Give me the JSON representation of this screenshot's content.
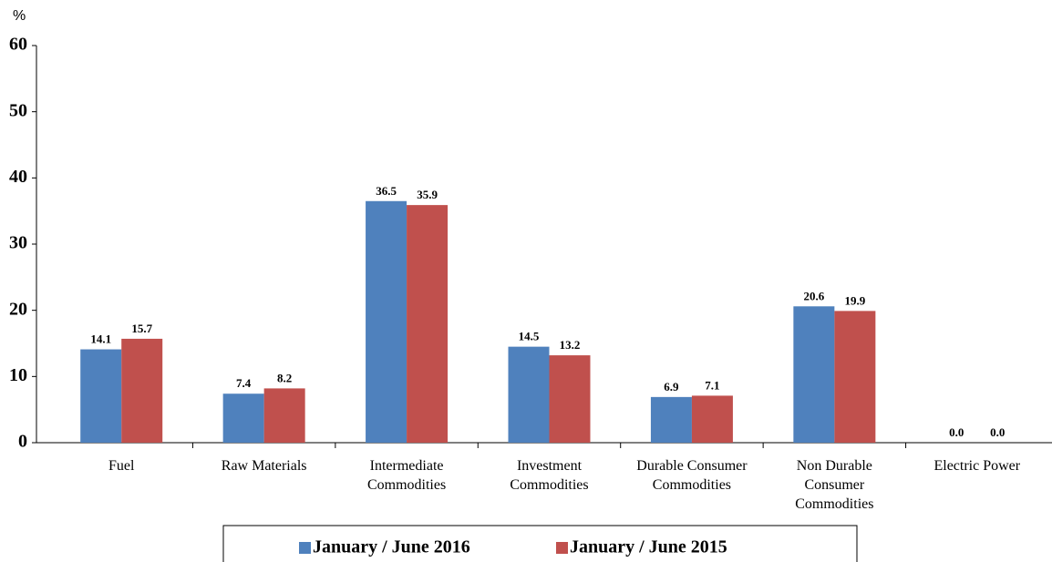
{
  "chart_data": {
    "type": "bar",
    "y_label": "%",
    "categories": [
      "Fuel",
      "Raw Materials",
      "Intermediate Commodities",
      "Investment Commodities",
      "Durable Consumer Commodities",
      "Non Durable Consumer Commodities",
      "Electric Power"
    ],
    "series": [
      {
        "name": "January / June 2016",
        "color": "#4f81bd",
        "values": [
          14.1,
          7.4,
          36.5,
          14.5,
          6.9,
          20.6,
          0
        ],
        "value_labels": [
          "14.1",
          "7.4",
          "36.5",
          "14.5",
          "6.9",
          "20.6",
          "0.0"
        ]
      },
      {
        "name": "January / June 2015",
        "color": "#c0504d",
        "values": [
          15.7,
          8.2,
          35.9,
          13.2,
          7.1,
          19.9,
          0
        ],
        "value_labels": [
          "15.7",
          "8.2",
          "35.9",
          "13.2",
          "7.1",
          "19.9",
          "0.0"
        ]
      }
    ],
    "ylim": [
      0,
      60
    ],
    "yticks": [
      0,
      10,
      20,
      30,
      40,
      50,
      60
    ],
    "grid": false,
    "legend": "bottom"
  }
}
